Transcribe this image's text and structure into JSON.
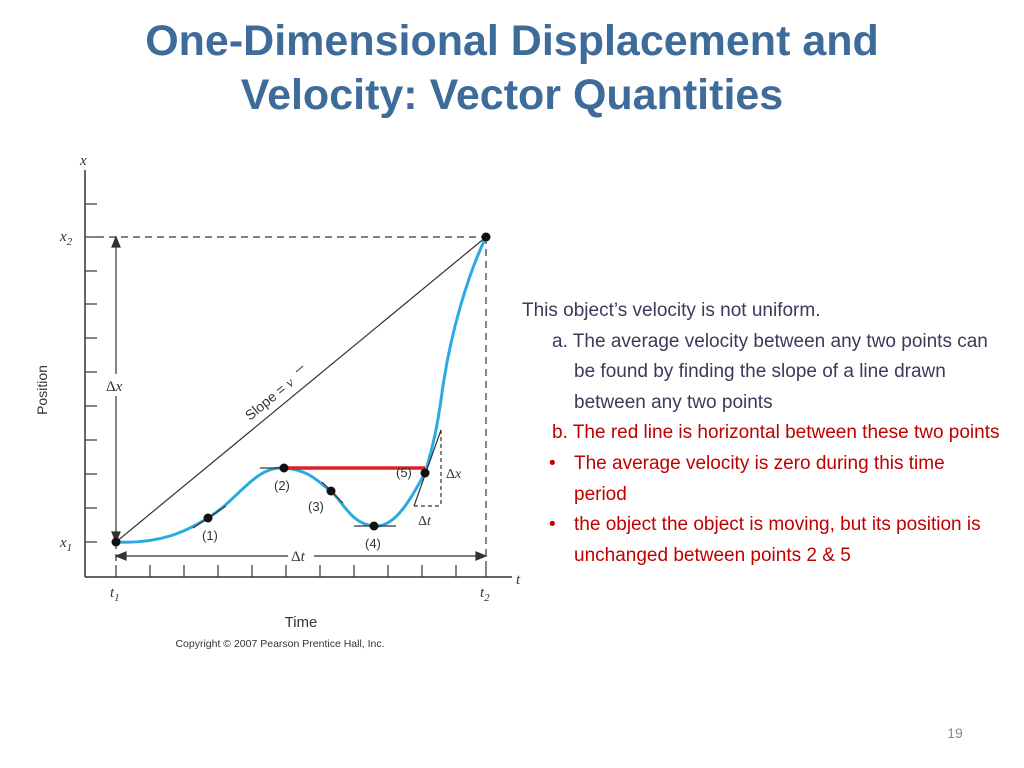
{
  "slide": {
    "title_line1": "One-Dimensional Displacement and",
    "title_line2": "Velocity: Vector Quantities",
    "page_number": "19"
  },
  "figure": {
    "y_axis_var": "x",
    "x_axis_var": "t",
    "x1": "x",
    "x1_sub": "1",
    "x2": "x",
    "x2_sub": "2",
    "t1": "t",
    "t1_sub": "1",
    "t2": "t",
    "t2_sub": "2",
    "position_label": "Position",
    "time_label": "Time",
    "slope_label": "Slope = ",
    "slope_var": "v",
    "delta": "Δ",
    "dx_var": "x",
    "dt_var": "t",
    "point1": "(1)",
    "point2": "(2)",
    "point3": "(3)",
    "point4": "(4)",
    "point5": "(5)",
    "copyright": "Copyright © 2007 Pearson Prentice Hall, Inc.",
    "colors": {
      "curve": "#29abe2",
      "red_line": "#e02020",
      "axes": "#333333"
    }
  },
  "notes": {
    "line1": "This object’s velocity is not uniform.",
    "a_marker": "a.",
    "a_text": "The average velocity between any two points can be found by finding the slope of a line drawn between any two points",
    "b_marker": "b.",
    "b_text": "The red line is horizontal between these two points",
    "bullet_char": "•",
    "bullet1": "The average velocity is zero during this time period",
    "bullet2": "the object the object is moving, but its position is unchanged between points 2 & 5"
  }
}
